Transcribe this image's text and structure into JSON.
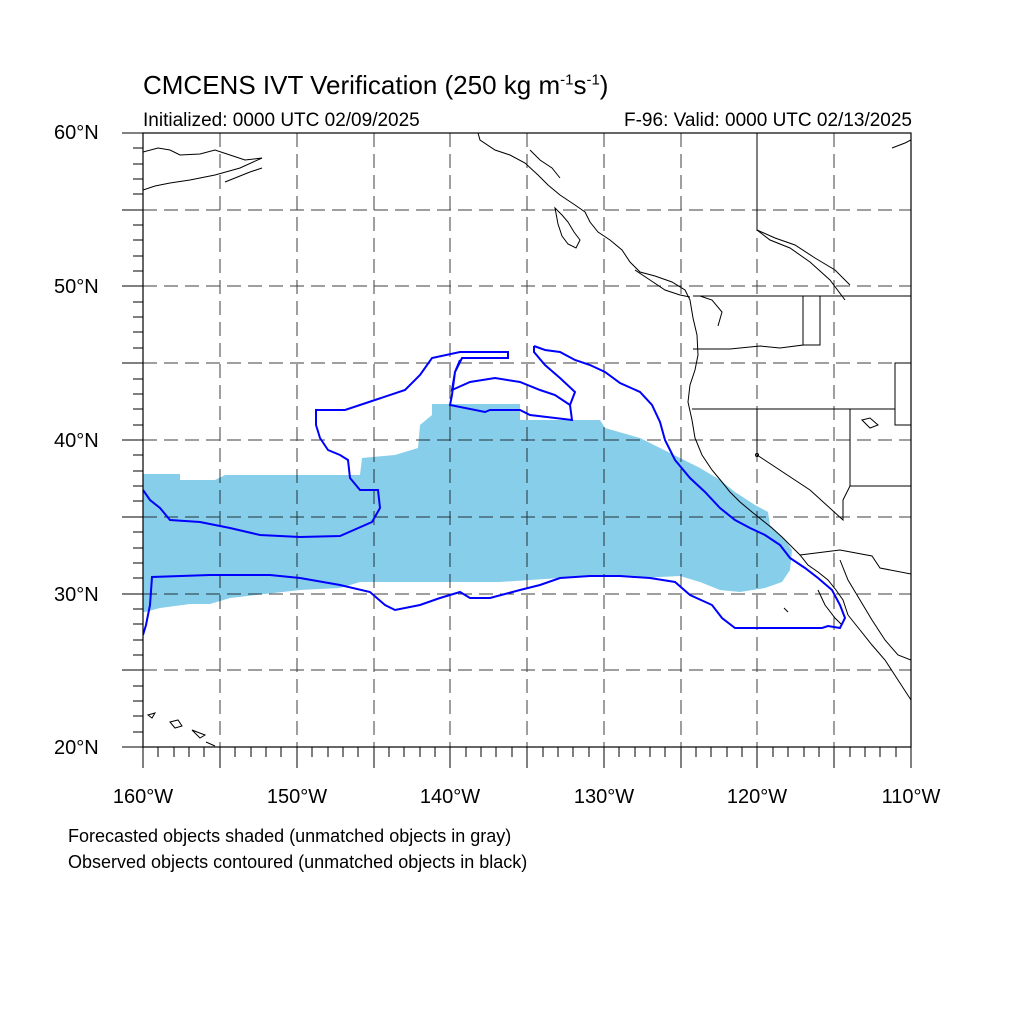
{
  "title": {
    "prefix": "CMCENS IVT Verification (250 kg m",
    "exp1": "-1",
    "mid": "s",
    "exp2": "-1",
    "suffix": ")"
  },
  "initialized": "Initialized: 0000 UTC 02/09/2025",
  "valid": "F-96: Valid: 0000 UTC 02/13/2025",
  "map": {
    "lon_range": [
      -160,
      -110
    ],
    "lat_range": [
      20,
      60
    ],
    "lat_ticks": [
      "60°N",
      "50°N",
      "40°N",
      "30°N",
      "20°N"
    ],
    "lon_ticks": [
      "160°W",
      "150°W",
      "140°W",
      "130°W",
      "120°W",
      "110°W"
    ],
    "grid": "dashed, every 5°",
    "colors": {
      "forecast_fill": "#87ceeb",
      "observed_contour": "#0000ff",
      "coastline": "#000000"
    }
  },
  "legend": {
    "line1": "Forecasted objects shaded (unmatched objects in gray)",
    "line2": "Observed objects contoured (unmatched objects in black)"
  }
}
